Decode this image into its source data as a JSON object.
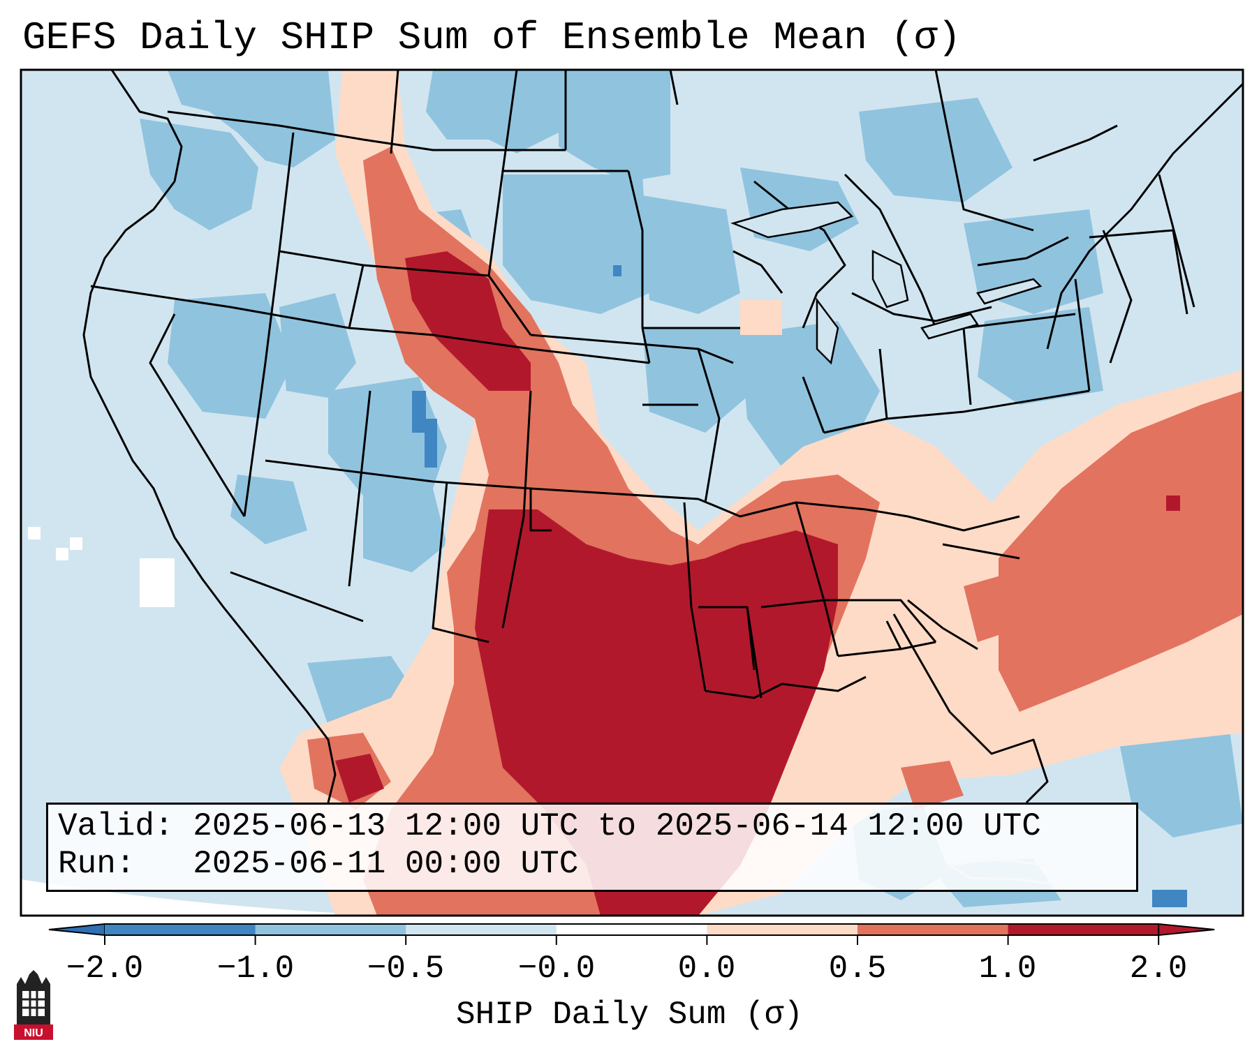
{
  "title": "GEFS Daily SHIP Sum of Ensemble Mean (σ)",
  "info": {
    "valid_label": "Valid:",
    "valid_value": "2025-06-13 12:00 UTC to 2025-06-14 12:00 UTC",
    "run_label": "Run:",
    "run_value": "2025-06-11 00:00 UTC"
  },
  "colorbar": {
    "label": "SHIP Daily Sum (σ)",
    "ticks": [
      "−2.0",
      "−1.0",
      "−0.5",
      "−0.0",
      "0.0",
      "0.5",
      "1.0",
      "2.0"
    ],
    "colors": [
      "#3f86c2",
      "#90c3de",
      "#d1e5f0",
      "#ffffff",
      "#fddbc7",
      "#e2735f",
      "#b2182b"
    ],
    "under_color": "#2f6fb3",
    "over_color": "#b2182b"
  },
  "map": {
    "background_color": "#d1e5f0",
    "outline_color": "#000000"
  },
  "logo": {
    "text": "NIU"
  }
}
